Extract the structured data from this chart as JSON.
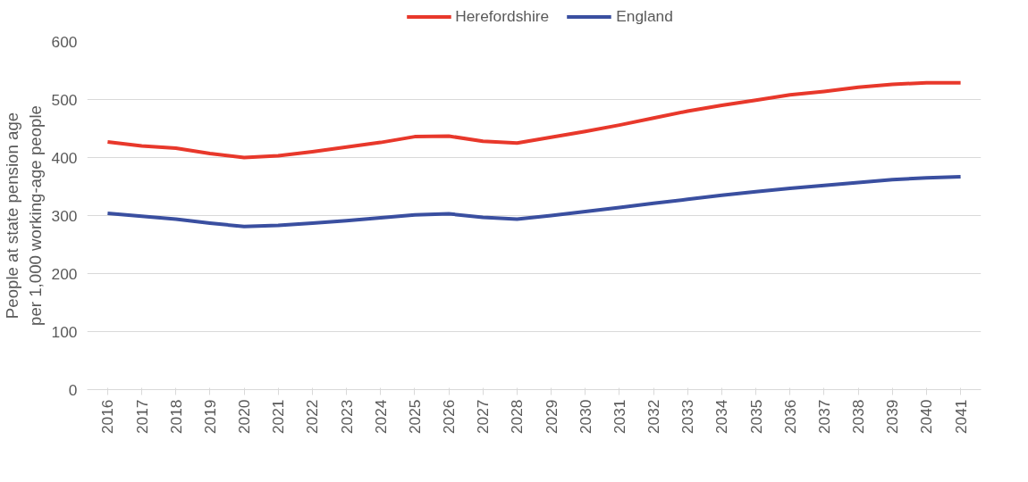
{
  "chart_data": {
    "type": "line",
    "ylabel": "People at state pension age\nper 1,000 working-age people",
    "categories": [
      "2016",
      "2017",
      "2018",
      "2019",
      "2020",
      "2021",
      "2022",
      "2023",
      "2024",
      "2025",
      "2026",
      "2027",
      "2028",
      "2029",
      "2030",
      "2031",
      "2032",
      "2033",
      "2034",
      "2035",
      "2036",
      "2037",
      "2038",
      "2039",
      "2040",
      "2041"
    ],
    "series": [
      {
        "name": "Herefordshire",
        "color": "#e8382b",
        "values": [
          427,
          420,
          416,
          407,
          400,
          403,
          410,
          418,
          426,
          436,
          437,
          428,
          425,
          435,
          445,
          456,
          468,
          480,
          490,
          499,
          508,
          514,
          521,
          526,
          529,
          529
        ]
      },
      {
        "name": "England",
        "color": "#3a4fa0",
        "values": [
          304,
          299,
          294,
          287,
          281,
          283,
          287,
          291,
          296,
          301,
          303,
          297,
          294,
          300,
          307,
          314,
          321,
          328,
          335,
          341,
          347,
          352,
          357,
          362,
          365,
          367
        ]
      }
    ],
    "ylim": [
      0,
      600
    ],
    "yticks": [
      0,
      100,
      200,
      300,
      400,
      500,
      600
    ],
    "grid": "y",
    "legend": "top",
    "marker": "none",
    "line_style": "solid"
  }
}
